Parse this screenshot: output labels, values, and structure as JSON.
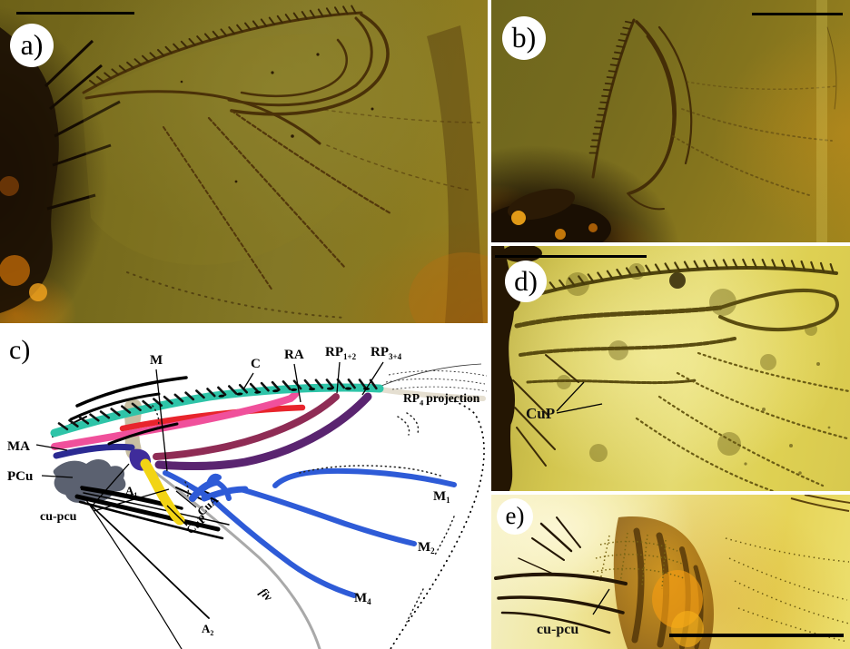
{
  "figure_caption_visible": false,
  "panels": {
    "a": {
      "label": "a)"
    },
    "b": {
      "label": "b)"
    },
    "c": {
      "label": "c)"
    },
    "d": {
      "label": "d)",
      "annotation": "CuP"
    },
    "e": {
      "label": "e)",
      "annotation": "cu-pcu"
    }
  },
  "diagram": {
    "labels": {
      "C": "C",
      "M": "M",
      "RA": "RA",
      "RP12": {
        "base": "RP",
        "sub": "1+2"
      },
      "RP34": {
        "base": "RP",
        "sub": "3+4"
      },
      "RP4proj": {
        "base": "RP",
        "sub": "4",
        "rest": "projection"
      },
      "MA": "MA",
      "PCu": "PCu",
      "A1": {
        "base": "A",
        "sub": "1"
      },
      "A2": {
        "base": "A",
        "sub": "2"
      },
      "cupcu": "cu-pcu",
      "CuA": "CuA",
      "CuP": "CuP",
      "fiv": "fiv",
      "M1": {
        "base": "M",
        "sub": "1"
      },
      "M2": {
        "base": "M",
        "sub": "2"
      },
      "M4": {
        "base": "M",
        "sub": "4"
      }
    },
    "vein_colors": {
      "costa": "#2EC4A8",
      "ra": "#F0509B",
      "r_red": "#E8242C",
      "rp12": "#8F2C55",
      "rp34": "#5A2470",
      "ma_navy": "#2B2A92",
      "basal_violet": "#3F2C9B",
      "m_blue": "#2E5BD7",
      "cua_yellow": "#F2D414",
      "pcu_slate": "#5B6170",
      "fold_gray": "#A9A9A9",
      "rp4_beige": "#E5DFD1",
      "basal_tan": "#C7BEA2"
    }
  }
}
